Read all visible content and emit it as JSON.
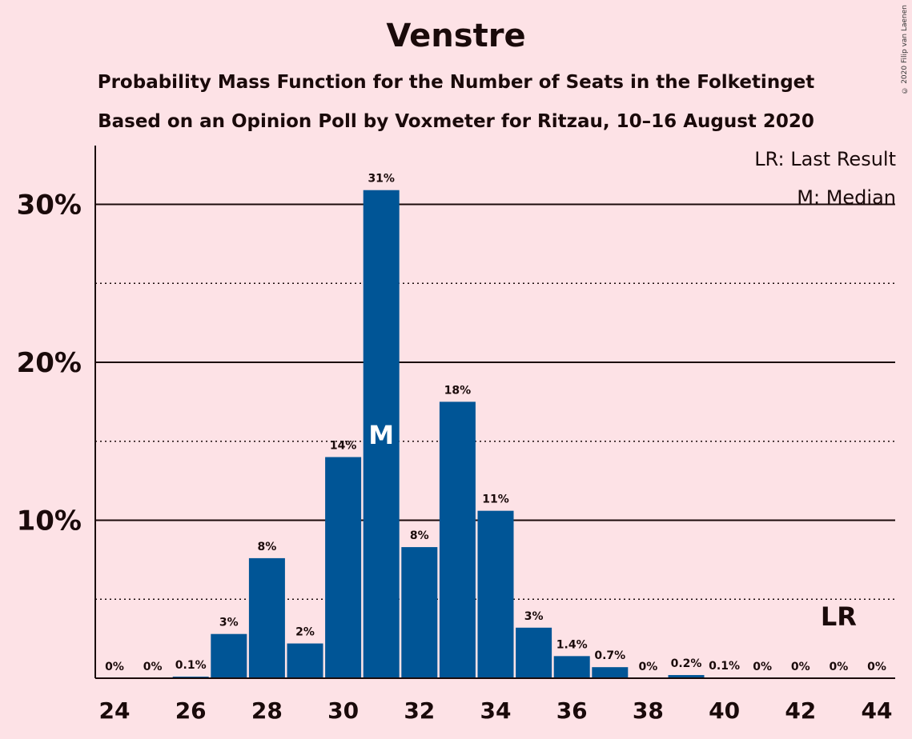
{
  "chart_data": {
    "type": "bar",
    "title": "Venstre",
    "subtitle": "Probability Mass Function for the Number of Seats in the Folketinget",
    "subtitle2": "Based on an Opinion Poll by Voxmeter for Ritzau, 10–16 August 2020",
    "copyright": "© 2020 Filip van Laenen",
    "legend": [
      "LR: Last Result",
      "M: Median"
    ],
    "legend_position": "top-right",
    "x": [
      24,
      25,
      26,
      27,
      28,
      29,
      30,
      31,
      32,
      33,
      34,
      35,
      36,
      37,
      38,
      39,
      40,
      41,
      42,
      43,
      44
    ],
    "values": [
      0,
      0,
      0.1,
      2.8,
      7.6,
      2.2,
      14.0,
      30.9,
      8.3,
      17.5,
      10.6,
      3.2,
      1.4,
      0.7,
      0,
      0.2,
      0.05,
      0,
      0,
      0,
      0
    ],
    "data_labels": [
      "0%",
      "0%",
      "0.1%",
      "3%",
      "8%",
      "2%",
      "14%",
      "31%",
      "8%",
      "18%",
      "11%",
      "3%",
      "1.4%",
      "0.7%",
      "0%",
      "0.2%",
      "0.1%",
      "0%",
      "0%",
      "0%",
      "0%"
    ],
    "x_ticks": [
      24,
      26,
      28,
      30,
      32,
      34,
      36,
      38,
      40,
      42,
      44
    ],
    "y_ticks": [
      10,
      20,
      30
    ],
    "y_tick_labels": [
      "10%",
      "20%",
      "30%"
    ],
    "ylim": [
      0,
      33.5
    ],
    "grid": "major solid, minor dotted",
    "median_seat": 31,
    "median_marker": "M",
    "last_result_seat": 43,
    "last_result_marker": "LR",
    "bar_color": "#005596"
  }
}
